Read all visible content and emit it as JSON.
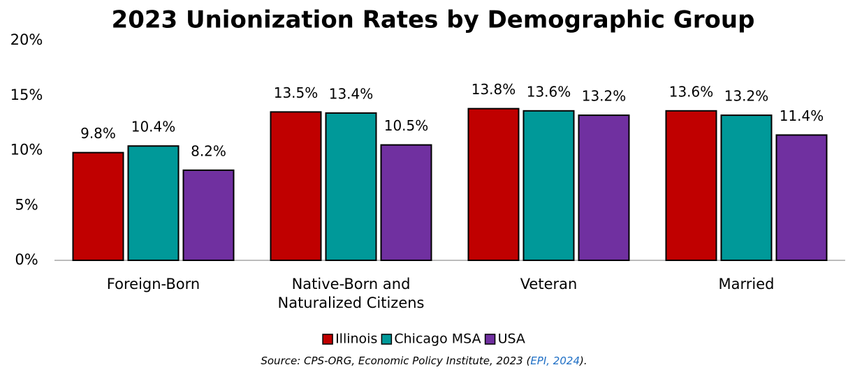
{
  "chart_data": {
    "type": "bar",
    "title": "2023 Unionization Rates by Demographic Group",
    "categories": [
      "Foreign-Born",
      "Native-Born and Naturalized Citizens",
      "Veteran",
      "Married"
    ],
    "series": [
      {
        "name": "Illinois",
        "color": "#c00000",
        "values": [
          9.8,
          13.5,
          13.8,
          13.6
        ],
        "value_labels": [
          "9.8%",
          "13.5%",
          "13.8%",
          "13.6%"
        ]
      },
      {
        "name": "Chicago MSA",
        "color": "#009999",
        "values": [
          10.4,
          13.4,
          13.6,
          13.2
        ],
        "value_labels": [
          "10.4%",
          "13.4%",
          "13.6%",
          "13.2%"
        ]
      },
      {
        "name": "USA",
        "color": "#7030a0",
        "values": [
          8.2,
          10.5,
          13.2,
          11.4
        ],
        "value_labels": [
          "8.2%",
          "10.5%",
          "13.2%",
          "11.4%"
        ]
      }
    ],
    "ylim": [
      0,
      20
    ],
    "yticks": [
      {
        "value": 0,
        "label": "0%"
      },
      {
        "value": 5,
        "label": "5%"
      },
      {
        "value": 10,
        "label": "10%"
      },
      {
        "value": 15,
        "label": "15%"
      },
      {
        "value": 20,
        "label": "20%"
      }
    ],
    "grid": false,
    "legend": "bottom",
    "source": {
      "before": "Source: CPS-ORG, Economic Policy Institute, 2023 (",
      "link": "EPI, 2024",
      "after": ")."
    }
  }
}
